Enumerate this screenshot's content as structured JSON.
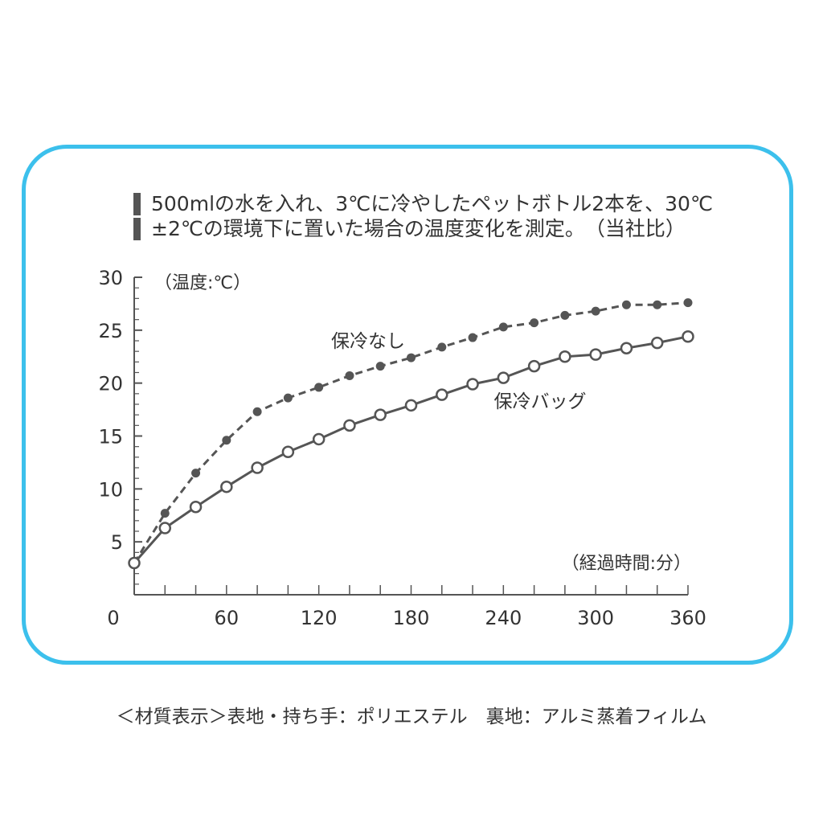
{
  "note": {
    "line1": "500mlの水を入れ、3℃に冷やしたペットボトル2本を、30℃",
    "line2": "±2℃の環境下に置いた場合の温度変化を測定。　（当社比）"
  },
  "material": "＜材質表示＞表地・持ち手：ポリエステル　裏地：アルミ蒸着フィルム",
  "colors": {
    "frame": "#3cc0ec",
    "line": "#555555",
    "text": "#333333"
  },
  "chart_data": {
    "type": "line",
    "ylabel": "（温度:℃）",
    "xlabel": "（経過時間:分）",
    "xlim": [
      0,
      360
    ],
    "ylim": [
      0,
      30
    ],
    "x_ticks": [
      0,
      60,
      120,
      180,
      240,
      300,
      360
    ],
    "y_ticks": [
      5,
      10,
      15,
      20,
      25,
      30
    ],
    "x_minor_step": 20,
    "y_minor_step": 1,
    "grid": false,
    "series": [
      {
        "name": "保冷なし",
        "style": "dashed-filled",
        "x": [
          0,
          20,
          40,
          60,
          80,
          100,
          120,
          140,
          160,
          180,
          200,
          220,
          240,
          260,
          280,
          300,
          320,
          340,
          360
        ],
        "values": [
          3.0,
          7.7,
          11.5,
          14.6,
          17.3,
          18.6,
          19.6,
          20.7,
          21.6,
          22.4,
          23.4,
          24.3,
          25.3,
          25.7,
          26.4,
          26.8,
          27.4,
          27.4,
          27.6
        ]
      },
      {
        "name": "保冷バッグ",
        "style": "solid-hollow",
        "x": [
          0,
          20,
          40,
          60,
          80,
          100,
          120,
          140,
          160,
          180,
          200,
          220,
          240,
          260,
          280,
          300,
          320,
          340,
          360
        ],
        "values": [
          3.0,
          6.3,
          8.3,
          10.2,
          12.0,
          13.5,
          14.7,
          16.0,
          17.0,
          17.9,
          18.9,
          19.9,
          20.5,
          21.6,
          22.5,
          22.7,
          23.3,
          23.8,
          24.4
        ]
      }
    ]
  }
}
